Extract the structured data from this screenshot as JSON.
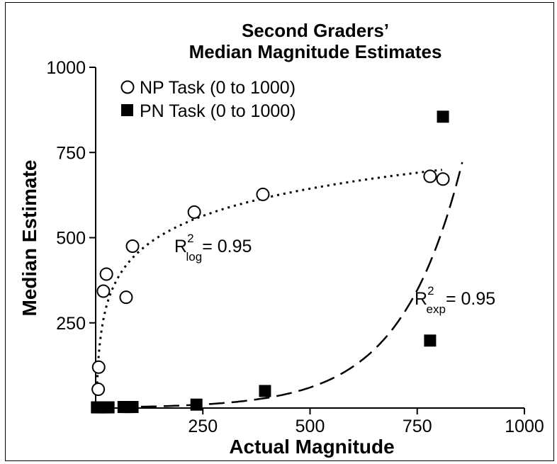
{
  "chart_data": {
    "type": "scatter",
    "title": [
      "Second Graders’",
      "Median Magnitude Estimates"
    ],
    "xlabel": "Actual Magnitude",
    "ylabel": "Median Estimate",
    "xlim": [
      0,
      1000
    ],
    "ylim": [
      0,
      1000
    ],
    "xticks": [
      {
        "v": 250,
        "label": "250"
      },
      {
        "v": 500,
        "label": "500"
      },
      {
        "v": 750,
        "label": "750"
      },
      {
        "v": 1000,
        "label": "1000"
      }
    ],
    "yticks": [
      {
        "v": 250,
        "label": "250"
      },
      {
        "v": 500,
        "label": "500"
      },
      {
        "v": 750,
        "label": "750"
      },
      {
        "v": 1000,
        "label": "1000"
      }
    ],
    "legend_position": "top-left",
    "series": [
      {
        "name": "NP Task (0 to 1000)",
        "marker": "open-circle",
        "points": [
          [
            6,
            55
          ],
          [
            7,
            120
          ],
          [
            18,
            343
          ],
          [
            25,
            393
          ],
          [
            71,
            325
          ],
          [
            86,
            475
          ],
          [
            230,
            575
          ],
          [
            390,
            627
          ],
          [
            780,
            680
          ],
          [
            810,
            672
          ]
        ],
        "fit": {
          "type": "log",
          "style": "dotted"
        }
      },
      {
        "name": "PN Task (0 to 1000)",
        "marker": "filled-square",
        "points": [
          [
            3,
            2
          ],
          [
            6,
            2
          ],
          [
            10,
            2
          ],
          [
            15,
            2
          ],
          [
            20,
            2
          ],
          [
            25,
            2
          ],
          [
            30,
            2
          ],
          [
            65,
            3
          ],
          [
            70,
            3
          ],
          [
            75,
            3
          ],
          [
            80,
            3
          ],
          [
            86,
            3
          ],
          [
            235,
            10
          ],
          [
            395,
            50
          ],
          [
            780,
            198
          ],
          [
            810,
            855
          ]
        ],
        "fit": {
          "type": "exp",
          "style": "dashed"
        }
      }
    ],
    "annotations": [
      {
        "prefix": "R",
        "sup": "2",
        "sub": "log",
        "suffix": "= 0.95"
      },
      {
        "prefix": "R",
        "sup": "2",
        "sub": "exp",
        "suffix": "= 0.95"
      }
    ]
  }
}
